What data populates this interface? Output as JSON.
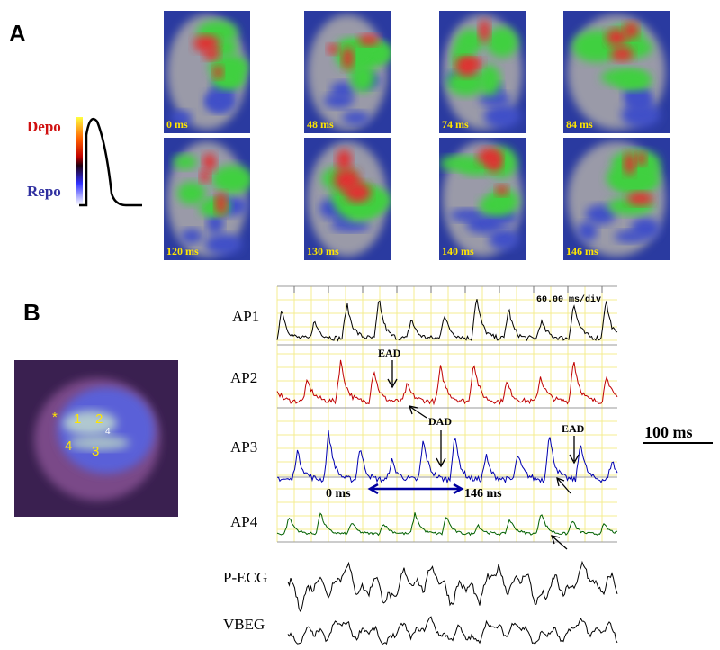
{
  "panel_a": {
    "label": "A",
    "legend": {
      "depo": "Depo",
      "repo": "Repo"
    },
    "frames": [
      "0 ms",
      "48 ms",
      "74 ms",
      "84 ms",
      "120 ms",
      "130 ms",
      "140 ms",
      "146 ms"
    ]
  },
  "panel_b": {
    "label": "B",
    "map_labels": [
      "*",
      "1",
      "2",
      "4",
      "4",
      "3"
    ],
    "scale_text": "60.00 ms/div",
    "traces": [
      "AP1",
      "AP2",
      "AP3",
      "AP4",
      "P-ECG",
      "VBEG"
    ],
    "annotations": {
      "ead_1": "EAD",
      "dad": "DAD",
      "ead_2": "EAD"
    },
    "window": {
      "start": "0 ms",
      "end": "146 ms"
    },
    "scale_bar": "100 ms"
  }
}
